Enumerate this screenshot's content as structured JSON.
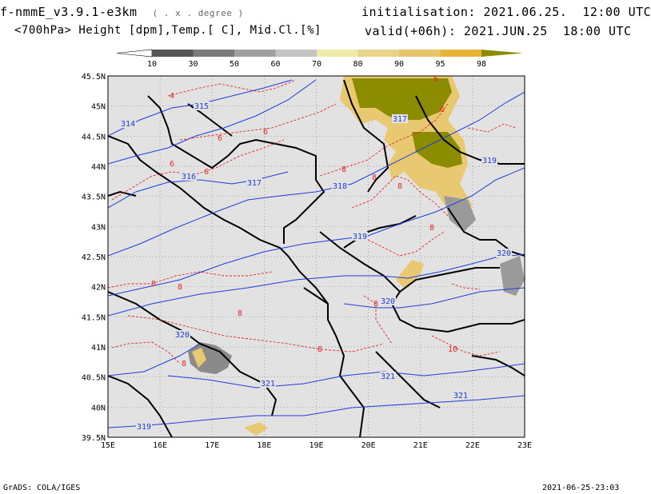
{
  "header": {
    "model": "f-nmmE_v3.9.1-e3km",
    "grid_note": "( . x . degree )",
    "fields": "<700hPa> Height [dpm],Temp.[ C], Mid.Cl.[%]",
    "init_label": "initialisation:",
    "init_value": "2021.06.25.  12:00 UTC",
    "valid_label": "valid(+06h):",
    "valid_value": "2021.JUN.25  18:00 UTC"
  },
  "colorbar": {
    "labels": [
      "10",
      "30",
      "50",
      "60",
      "70",
      "80",
      "90",
      "95",
      "98"
    ],
    "colors": [
      "#555555",
      "#7a7a7a",
      "#a0a0a0",
      "#c4c4c4",
      "#eeeaa8",
      "#e8d48a",
      "#e8c46a",
      "#e8b438",
      "#8c8c00"
    ]
  },
  "map": {
    "lat_labels": [
      "45.5N",
      "45N",
      "44.5N",
      "44N",
      "43.5N",
      "43N",
      "42.5N",
      "42N",
      "41.5N",
      "41N",
      "40.5N",
      "40N",
      "39.5N"
    ],
    "lon_labels": [
      "15E",
      "16E",
      "17E",
      "18E",
      "19E",
      "20E",
      "21E",
      "22E",
      "23E"
    ],
    "height_labels": [
      "314",
      "315",
      "316",
      "317",
      "317",
      "318",
      "319",
      "319",
      "320",
      "320",
      "320",
      "321",
      "321",
      "321",
      "319"
    ],
    "temp_labels": [
      "4",
      "6",
      "6",
      "6",
      "6",
      "6",
      "6",
      "8",
      "8",
      "8",
      "8",
      "8",
      "8",
      "8",
      "8",
      "8",
      "8",
      "10"
    ],
    "colors": {
      "background": "#e2e2e2",
      "height_contour": "#1e3cdc",
      "temp_contour": "#e02828",
      "coast": "#000000",
      "cloud_high": "#8c8c00",
      "cloud_mid": "#e8c870",
      "cloud_low": "#7a7a7a"
    }
  },
  "footer": {
    "left": "GrADS: COLA/IGES",
    "right": "2021-06-25-23:03"
  }
}
